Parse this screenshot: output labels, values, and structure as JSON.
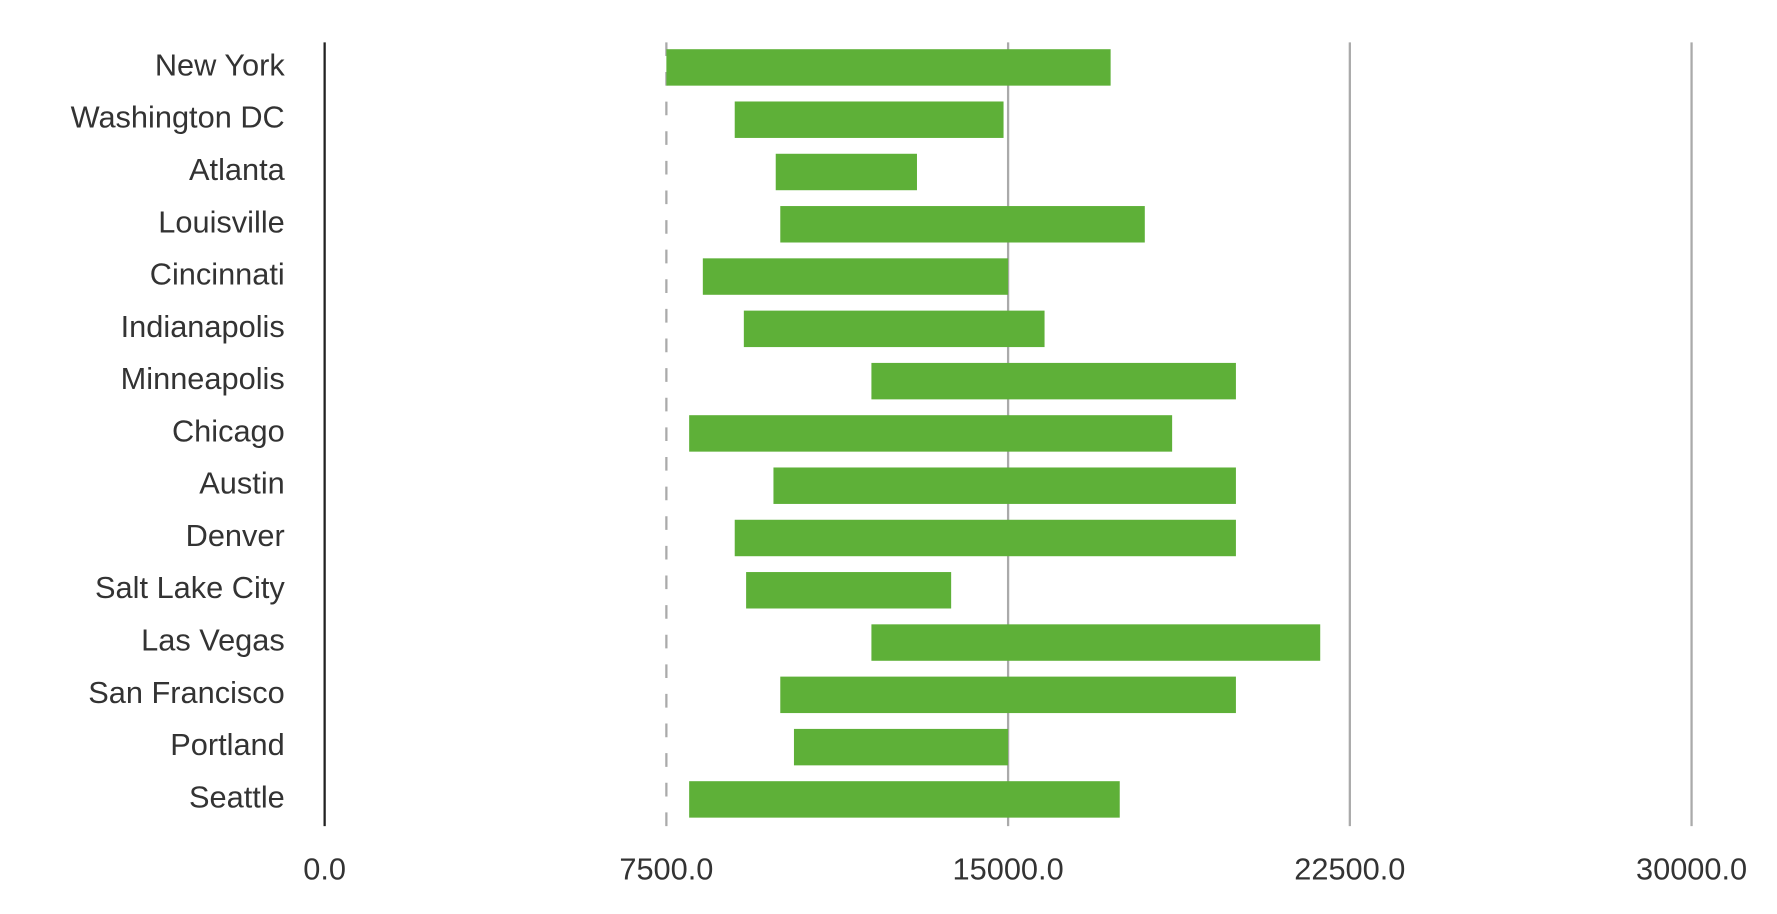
{
  "chart_data": {
    "type": "bar",
    "orientation": "horizontal",
    "subtype": "floating-range",
    "title": "",
    "xlabel": "",
    "ylabel": "",
    "xlim": [
      0,
      30000
    ],
    "xticks": [
      "0.0",
      "7500.0",
      "15000.0",
      "22500.0",
      "30000.0"
    ],
    "grid": true,
    "bar_color": "#5eb038",
    "categories": [
      "New York",
      "Washington DC",
      "Atlanta",
      "Louisville",
      "Cincinnati",
      "Indianapolis",
      "Minneapolis",
      "Chicago",
      "Austin",
      "Denver",
      "Salt Lake City",
      "Las Vegas",
      "San Francisco",
      "Portland",
      "Seattle"
    ],
    "ranges": [
      [
        7500,
        17250
      ],
      [
        9000,
        14900
      ],
      [
        9900,
        13000
      ],
      [
        10000,
        18000
      ],
      [
        8300,
        15000
      ],
      [
        9200,
        15800
      ],
      [
        12000,
        20000
      ],
      [
        8000,
        18600
      ],
      [
        9850,
        20000
      ],
      [
        9000,
        20000
      ],
      [
        9250,
        13750
      ],
      [
        12000,
        21850
      ],
      [
        10000,
        20000
      ],
      [
        10300,
        15000
      ],
      [
        8000,
        17450
      ]
    ]
  }
}
